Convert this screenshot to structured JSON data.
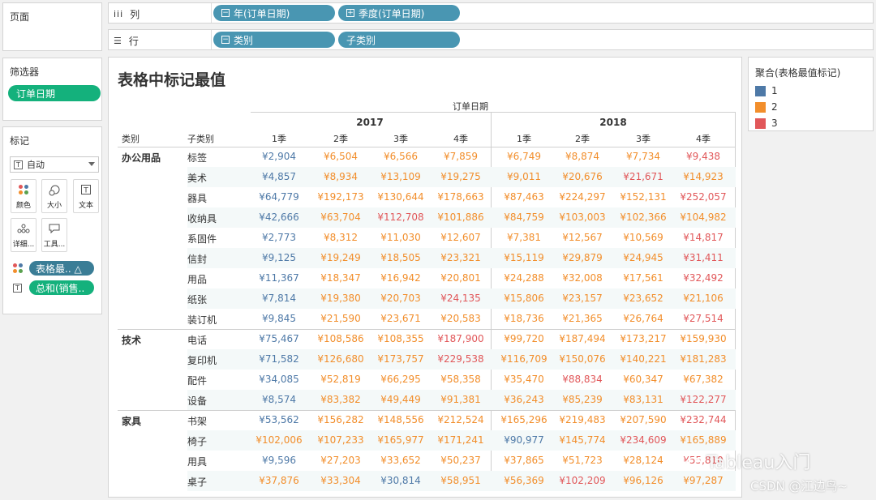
{
  "colors": {
    "1": "#4e79a7",
    "2": "#f28e2b",
    "3": "#e15759"
  },
  "sidebar": {
    "pages_title": "页面",
    "filters_title": "筛选器",
    "filter_pill": "订单日期",
    "marks_title": "标记",
    "mark_type": "自动",
    "buttons": {
      "color": "颜色",
      "size": "大小",
      "label": "文本",
      "detail": "详细...",
      "tooltip": "工具..."
    },
    "mark_pills": [
      "表格最.. △",
      "总和(销售.."
    ]
  },
  "shelves": {
    "columns_label": "列",
    "columns_pills": [
      "年(订单日期)",
      "季度(订单日期)"
    ],
    "rows_label": "行",
    "rows_pills": [
      "类别",
      "子类别"
    ]
  },
  "viz": {
    "title": "表格中标记最值",
    "col_header": "订单日期",
    "row_headers": [
      "类别",
      "子类别"
    ],
    "years": [
      "2017",
      "2018"
    ],
    "quarters": [
      "1季",
      "2季",
      "3季",
      "4季",
      "1季",
      "2季",
      "3季",
      "4季"
    ]
  },
  "legend": {
    "title": "聚合(表格最值标记)",
    "items": [
      "1",
      "2",
      "3"
    ]
  },
  "chart_data": {
    "type": "table",
    "title": "表格中标记最值",
    "columns": [
      "2017 1季",
      "2017 2季",
      "2017 3季",
      "2017 4季",
      "2018 1季",
      "2018 2季",
      "2018 3季",
      "2018 4季"
    ],
    "rows": [
      {
        "category": "办公用品",
        "sub": "标签",
        "values": [
          "¥2,904",
          "¥6,504",
          "¥6,566",
          "¥7,859",
          "¥6,749",
          "¥8,874",
          "¥7,734",
          "¥9,438"
        ],
        "marks": [
          1,
          2,
          2,
          2,
          2,
          2,
          2,
          3
        ]
      },
      {
        "category": "",
        "sub": "美术",
        "values": [
          "¥4,857",
          "¥8,934",
          "¥13,109",
          "¥19,275",
          "¥9,011",
          "¥20,676",
          "¥21,671",
          "¥14,923"
        ],
        "marks": [
          1,
          2,
          2,
          2,
          2,
          2,
          3,
          2
        ]
      },
      {
        "category": "",
        "sub": "器具",
        "values": [
          "¥64,779",
          "¥192,173",
          "¥130,644",
          "¥178,663",
          "¥87,463",
          "¥224,297",
          "¥152,131",
          "¥252,057"
        ],
        "marks": [
          1,
          2,
          2,
          2,
          2,
          2,
          2,
          3
        ]
      },
      {
        "category": "",
        "sub": "收纳具",
        "values": [
          "¥42,666",
          "¥63,704",
          "¥112,708",
          "¥101,886",
          "¥84,759",
          "¥103,003",
          "¥102,366",
          "¥104,982"
        ],
        "marks": [
          1,
          2,
          3,
          2,
          2,
          2,
          2,
          2
        ]
      },
      {
        "category": "",
        "sub": "系固件",
        "values": [
          "¥2,773",
          "¥8,312",
          "¥11,030",
          "¥12,607",
          "¥7,381",
          "¥12,567",
          "¥10,569",
          "¥14,817"
        ],
        "marks": [
          1,
          2,
          2,
          2,
          2,
          2,
          2,
          3
        ]
      },
      {
        "category": "",
        "sub": "信封",
        "values": [
          "¥9,125",
          "¥19,249",
          "¥18,505",
          "¥23,321",
          "¥15,119",
          "¥29,879",
          "¥24,945",
          "¥31,411"
        ],
        "marks": [
          1,
          2,
          2,
          2,
          2,
          2,
          2,
          3
        ]
      },
      {
        "category": "",
        "sub": "用品",
        "values": [
          "¥11,367",
          "¥18,347",
          "¥16,942",
          "¥20,801",
          "¥24,288",
          "¥32,008",
          "¥17,561",
          "¥32,492"
        ],
        "marks": [
          1,
          2,
          2,
          2,
          2,
          2,
          2,
          3
        ]
      },
      {
        "category": "",
        "sub": "纸张",
        "values": [
          "¥7,814",
          "¥19,380",
          "¥20,703",
          "¥24,135",
          "¥15,806",
          "¥23,157",
          "¥23,652",
          "¥21,106"
        ],
        "marks": [
          1,
          2,
          2,
          3,
          2,
          2,
          2,
          2
        ]
      },
      {
        "category": "",
        "sub": "装订机",
        "values": [
          "¥9,845",
          "¥21,590",
          "¥23,671",
          "¥20,583",
          "¥18,736",
          "¥21,365",
          "¥26,764",
          "¥27,514"
        ],
        "marks": [
          1,
          2,
          2,
          2,
          2,
          2,
          2,
          3
        ]
      },
      {
        "category": "技术",
        "sub": "电话",
        "values": [
          "¥75,467",
          "¥108,586",
          "¥108,355",
          "¥187,900",
          "¥99,720",
          "¥187,494",
          "¥173,217",
          "¥159,930"
        ],
        "marks": [
          1,
          2,
          2,
          3,
          2,
          2,
          2,
          2
        ]
      },
      {
        "category": "",
        "sub": "复印机",
        "values": [
          "¥71,582",
          "¥126,680",
          "¥173,757",
          "¥229,538",
          "¥116,709",
          "¥150,076",
          "¥140,221",
          "¥181,283"
        ],
        "marks": [
          1,
          2,
          2,
          3,
          2,
          2,
          2,
          2
        ]
      },
      {
        "category": "",
        "sub": "配件",
        "values": [
          "¥34,085",
          "¥52,819",
          "¥66,295",
          "¥58,358",
          "¥35,470",
          "¥88,834",
          "¥60,347",
          "¥67,382"
        ],
        "marks": [
          1,
          2,
          2,
          2,
          2,
          3,
          2,
          2
        ]
      },
      {
        "category": "",
        "sub": "设备",
        "values": [
          "¥8,574",
          "¥83,382",
          "¥49,449",
          "¥91,381",
          "¥36,243",
          "¥85,239",
          "¥83,131",
          "¥122,277"
        ],
        "marks": [
          1,
          2,
          2,
          2,
          2,
          2,
          2,
          3
        ]
      },
      {
        "category": "家具",
        "sub": "书架",
        "values": [
          "¥53,562",
          "¥156,282",
          "¥148,556",
          "¥212,524",
          "¥165,296",
          "¥219,483",
          "¥207,590",
          "¥232,744"
        ],
        "marks": [
          1,
          2,
          2,
          2,
          2,
          2,
          2,
          3
        ]
      },
      {
        "category": "",
        "sub": "椅子",
        "values": [
          "¥102,006",
          "¥107,233",
          "¥165,977",
          "¥171,241",
          "¥90,977",
          "¥145,774",
          "¥234,609",
          "¥165,889"
        ],
        "marks": [
          2,
          2,
          2,
          2,
          1,
          2,
          3,
          2
        ]
      },
      {
        "category": "",
        "sub": "用具",
        "values": [
          "¥9,596",
          "¥27,203",
          "¥33,652",
          "¥50,237",
          "¥37,865",
          "¥51,723",
          "¥28,124",
          "¥55,810"
        ],
        "marks": [
          1,
          2,
          2,
          2,
          2,
          2,
          2,
          3
        ]
      },
      {
        "category": "",
        "sub": "桌子",
        "values": [
          "¥37,876",
          "¥33,304",
          "¥30,814",
          "¥58,951",
          "¥56,369",
          "¥102,209",
          "¥96,126",
          "¥97,287"
        ],
        "marks": [
          2,
          2,
          1,
          2,
          2,
          3,
          2,
          2
        ]
      }
    ]
  },
  "watermark": {
    "line1": "Tableau入门",
    "line2": "CSDN @江边鸟~"
  }
}
